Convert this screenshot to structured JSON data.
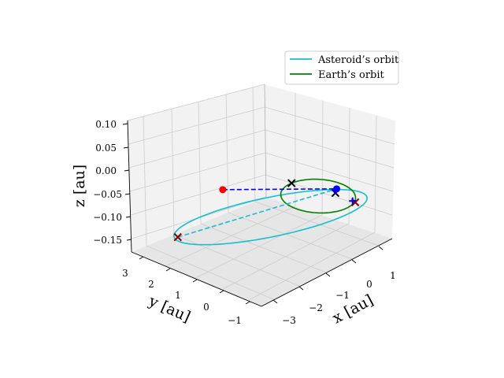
{
  "chart_data": {
    "type": "line3d",
    "title": "",
    "xlabel": "x [au]",
    "ylabel": "y [au]",
    "zlabel": "z [au]",
    "xticks": [
      "−3",
      "−2",
      "−1",
      "0",
      "1"
    ],
    "yticks": [
      "3",
      "2",
      "1",
      "0",
      "−1"
    ],
    "zticks": [
      "0.10",
      "0.05",
      "0.00",
      "−0.05",
      "−0.10",
      "−0.15"
    ],
    "legend_position": "upper-right",
    "grid": true,
    "series": [
      {
        "name": "Asteroid’s orbit",
        "color": "#17becf",
        "style": "solid",
        "center": [
          -0.9,
          0.9,
          -0.05
        ],
        "semi_axis_a": 2.6,
        "semi_axis_b": 1.3,
        "tilt_z": 0.06
      },
      {
        "name": "Earth’s orbit",
        "color": "#008000",
        "style": "solid",
        "center": [
          0.0,
          0.0,
          0.0
        ],
        "radius": 1.0
      }
    ],
    "transfer_legs": [
      {
        "color": "#17becf",
        "style": "dashed",
        "from": [
          -3.0,
          2.3,
          -0.12
        ],
        "to": [
          0.4,
          -0.3,
          0.02
        ]
      },
      {
        "color": "#0000ff",
        "style": "dashed",
        "from": [
          -2.3,
          1.3,
          -0.02
        ],
        "to": [
          0.4,
          -0.3,
          0.02
        ]
      }
    ],
    "markers": [
      {
        "kind": "x",
        "color": "#000000",
        "point": [
          -1.0,
          0.0,
          0.0
        ]
      },
      {
        "kind": "x",
        "color": "#000000",
        "point": [
          0.55,
          -0.1,
          0.02
        ]
      },
      {
        "kind": "x",
        "color": "#8b0000",
        "point": [
          0.9,
          -0.5,
          0.0
        ]
      },
      {
        "kind": "x",
        "color": "#8b0000",
        "point": [
          -3.0,
          2.3,
          -0.12
        ]
      },
      {
        "kind": "dot",
        "color": "#ff0000",
        "point": [
          -2.3,
          1.3,
          -0.02
        ]
      },
      {
        "kind": "dot",
        "color": "#0000ff",
        "point": [
          0.4,
          -0.3,
          0.02
        ]
      },
      {
        "kind": "plus",
        "color": "#0000ff",
        "point": [
          0.45,
          -0.2,
          0.02
        ]
      },
      {
        "kind": "plus",
        "color": "#0000ff",
        "point": [
          0.8,
          -0.5,
          0.0
        ]
      }
    ]
  }
}
